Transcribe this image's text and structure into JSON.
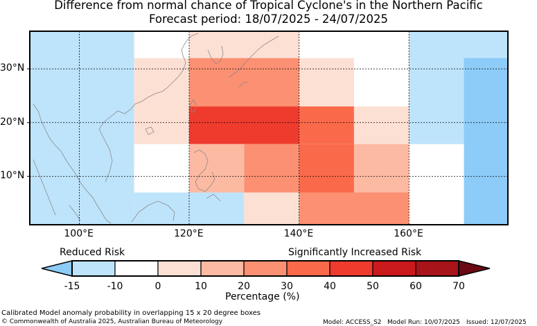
{
  "title": {
    "line1": "Difference from normal chance of Tropical Cyclone's in the Northern Pacific",
    "line2": "Forecast period: 18/07/2025 - 24/07/2025"
  },
  "map": {
    "lon_range": [
      91,
      178
    ],
    "lat_range": [
      1,
      37
    ],
    "lat_ticks": [
      {
        "value": 30,
        "label": "30°N"
      },
      {
        "value": 20,
        "label": "20°N"
      },
      {
        "value": 10,
        "label": "10°N"
      }
    ],
    "lon_ticks": [
      {
        "value": 100,
        "label": "100°E"
      },
      {
        "value": 120,
        "label": "120°E"
      },
      {
        "value": 140,
        "label": "140°E"
      },
      {
        "value": 160,
        "label": "160°E"
      }
    ],
    "cells": [
      {
        "lon": [
          91,
          110
        ],
        "lat": [
          1,
          37
        ],
        "category": 0
      },
      {
        "lon": [
          110,
          120
        ],
        "lat": [
          7,
          37
        ],
        "category": 1
      },
      {
        "lon": [
          110,
          130
        ],
        "lat": [
          1,
          7
        ],
        "category": 0
      },
      {
        "lon": [
          120,
          140
        ],
        "lat": [
          32,
          37
        ],
        "category": 2
      },
      {
        "lon": [
          110,
          120
        ],
        "lat": [
          16,
          32
        ],
        "category": 2
      },
      {
        "lon": [
          120,
          140
        ],
        "lat": [
          23,
          32
        ],
        "category": 4
      },
      {
        "lon": [
          140,
          150
        ],
        "lat": [
          23,
          32
        ],
        "category": 2
      },
      {
        "lon": [
          120,
          140
        ],
        "lat": [
          16,
          23
        ],
        "category": 6
      },
      {
        "lon": [
          140,
          150
        ],
        "lat": [
          16,
          23
        ],
        "category": 5
      },
      {
        "lon": [
          150,
          160
        ],
        "lat": [
          16,
          23
        ],
        "category": 2
      },
      {
        "lon": [
          120,
          130
        ],
        "lat": [
          7,
          16
        ],
        "category": 3
      },
      {
        "lon": [
          130,
          140
        ],
        "lat": [
          7,
          16
        ],
        "category": 4
      },
      {
        "lon": [
          140,
          150
        ],
        "lat": [
          7,
          16
        ],
        "category": 5
      },
      {
        "lon": [
          150,
          160
        ],
        "lat": [
          7,
          16
        ],
        "category": 3
      },
      {
        "lon": [
          130,
          140
        ],
        "lat": [
          1,
          7
        ],
        "category": 2
      },
      {
        "lon": [
          140,
          160
        ],
        "lat": [
          1,
          7
        ],
        "category": 4
      },
      {
        "lon": [
          160,
          178
        ],
        "lat": [
          16,
          37
        ],
        "category": 0
      },
      {
        "lon": [
          170,
          178
        ],
        "lat": [
          1,
          32
        ],
        "category": -1
      }
    ]
  },
  "colorbar": {
    "boundaries": [
      "-15",
      "-10",
      "0",
      "10",
      "20",
      "30",
      "40",
      "50",
      "60",
      "70"
    ],
    "colors": [
      "#bee4fb",
      "#ffffff",
      "#fde0d4",
      "#fcbaa2",
      "#fc9072",
      "#fa6a4a",
      "#ee3b2e",
      "#ca191d",
      "#a71419"
    ],
    "under_color": "#8dcbf8",
    "over_color": "#6b0a12",
    "label_left": "Reduced Risk",
    "label_right": "Significantly Increased Risk",
    "axis_label": "Percentage (%)"
  },
  "footer": {
    "note": "Calibrated Model anomaly probability in overlapping 15 x 20 degree boxes",
    "copyright": "© Commonwealth of Australia 2025, Australian Bureau of Meteorology",
    "model": "Model: ACCESS_S2",
    "model_run": "Model Run: 10/07/2025",
    "issued": "Issued: 12/07/2025"
  }
}
